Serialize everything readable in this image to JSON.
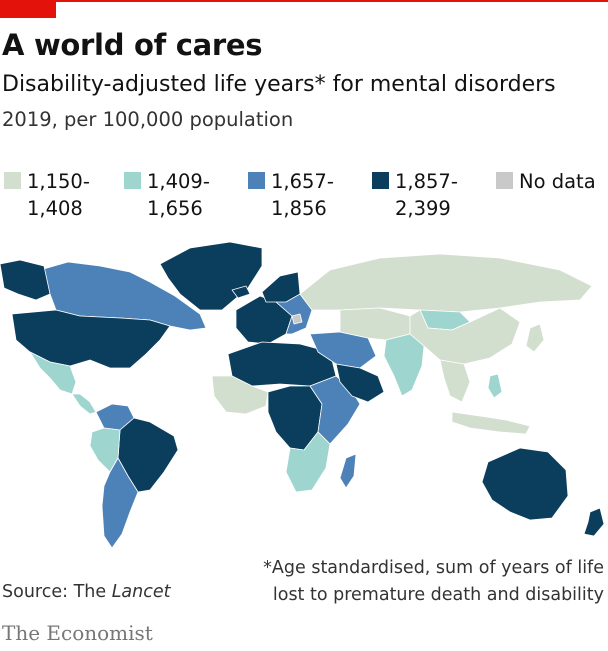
{
  "header": {
    "title": "A world of cares",
    "subtitle": "Disability-adjusted life years* for mental disorders",
    "subsubtitle": "2019, per 100,000 population"
  },
  "colors": {
    "accent": "#e3120b",
    "band1": "#d2dfcf",
    "band2": "#9fd5cf",
    "band3": "#4d82b8",
    "band4": "#0b3d5c",
    "nodata": "#c9c9c9"
  },
  "legend": [
    {
      "line1": "1,150-",
      "line2": "1,408",
      "color": "#d2dfcf"
    },
    {
      "line1": "1,409-",
      "line2": "1,656",
      "color": "#9fd5cf"
    },
    {
      "line1": "1,657-",
      "line2": "1,856",
      "color": "#4d82b8"
    },
    {
      "line1": "1,857-",
      "line2": "2,399",
      "color": "#0b3d5c"
    },
    {
      "line1": "No data",
      "line2": "",
      "color": "#c9c9c9"
    }
  ],
  "note": {
    "line1": "*Age standardised, sum of years of life",
    "line2": "lost to premature death and disability"
  },
  "source": {
    "prefix": "Source: The ",
    "italic": "Lancet"
  },
  "brand": "The Economist",
  "regions": [
    {
      "name": "Greenland",
      "band": "band4"
    },
    {
      "name": "Canada",
      "band": "band3"
    },
    {
      "name": "Alaska",
      "band": "band4"
    },
    {
      "name": "United States",
      "band": "band4"
    },
    {
      "name": "Mexico",
      "band": "band2"
    },
    {
      "name": "Central America",
      "band": "band2"
    },
    {
      "name": "Colombia/Venezuela",
      "band": "band3"
    },
    {
      "name": "Brazil",
      "band": "band4"
    },
    {
      "name": "Peru/Bolivia",
      "band": "band2"
    },
    {
      "name": "Argentina/Chile",
      "band": "band3"
    },
    {
      "name": "Western Europe",
      "band": "band4"
    },
    {
      "name": "Eastern Europe",
      "band": "band3"
    },
    {
      "name": "Russia",
      "band": "band1"
    },
    {
      "name": "North Africa",
      "band": "band4"
    },
    {
      "name": "West Africa",
      "band": "band1"
    },
    {
      "name": "Central Africa",
      "band": "band4"
    },
    {
      "name": "East Africa",
      "band": "band3"
    },
    {
      "name": "Southern Africa",
      "band": "band2"
    },
    {
      "name": "Madagascar",
      "band": "band3"
    },
    {
      "name": "Middle East",
      "band": "band3"
    },
    {
      "name": "Arabian Peninsula",
      "band": "band4"
    },
    {
      "name": "Central Asia",
      "band": "band1"
    },
    {
      "name": "Mongolia",
      "band": "band2"
    },
    {
      "name": "India",
      "band": "band2"
    },
    {
      "name": "China",
      "band": "band1"
    },
    {
      "name": "Southeast Asia",
      "band": "band1"
    },
    {
      "name": "Indonesia",
      "band": "band1"
    },
    {
      "name": "Philippines",
      "band": "band2"
    },
    {
      "name": "Japan",
      "band": "band1"
    },
    {
      "name": "Australia",
      "band": "band4"
    },
    {
      "name": "New Zealand",
      "band": "band4"
    },
    {
      "name": "Iceland",
      "band": "band4"
    },
    {
      "name": "Scandinavia",
      "band": "band4"
    },
    {
      "name": "Greenland-area No data",
      "band": "nodata"
    }
  ]
}
